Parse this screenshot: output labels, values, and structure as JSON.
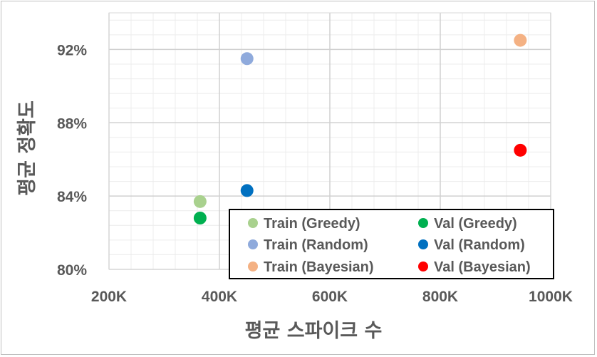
{
  "chart_data": {
    "type": "scatter",
    "xlabel": "평균 스파이크 수",
    "ylabel": "평균 정확도",
    "xlim": [
      200000,
      1000000
    ],
    "ylim": [
      0.8,
      0.94
    ],
    "x_ticks": [
      "200K",
      "400K",
      "600K",
      "800K",
      "1000K"
    ],
    "y_ticks": [
      "80%",
      "84%",
      "88%",
      "92%"
    ],
    "grid": true,
    "legend_position": "bottom-right",
    "series": [
      {
        "name": "Train (Greedy)",
        "color": "#a9d18e",
        "points": [
          {
            "x": 365000,
            "y": 0.837
          }
        ]
      },
      {
        "name": "Train (Random)",
        "color": "#8faadc",
        "points": [
          {
            "x": 450000,
            "y": 0.915
          }
        ]
      },
      {
        "name": "Train (Bayesian)",
        "color": "#f4b183",
        "points": [
          {
            "x": 945000,
            "y": 0.925
          }
        ]
      },
      {
        "name": "Val (Greedy)",
        "color": "#00b050",
        "points": [
          {
            "x": 365000,
            "y": 0.828
          }
        ]
      },
      {
        "name": "Val (Random)",
        "color": "#0070c0",
        "points": [
          {
            "x": 450000,
            "y": 0.843
          }
        ]
      },
      {
        "name": "Val (Bayesian)",
        "color": "#ff0000",
        "points": [
          {
            "x": 945000,
            "y": 0.865
          }
        ]
      }
    ]
  }
}
